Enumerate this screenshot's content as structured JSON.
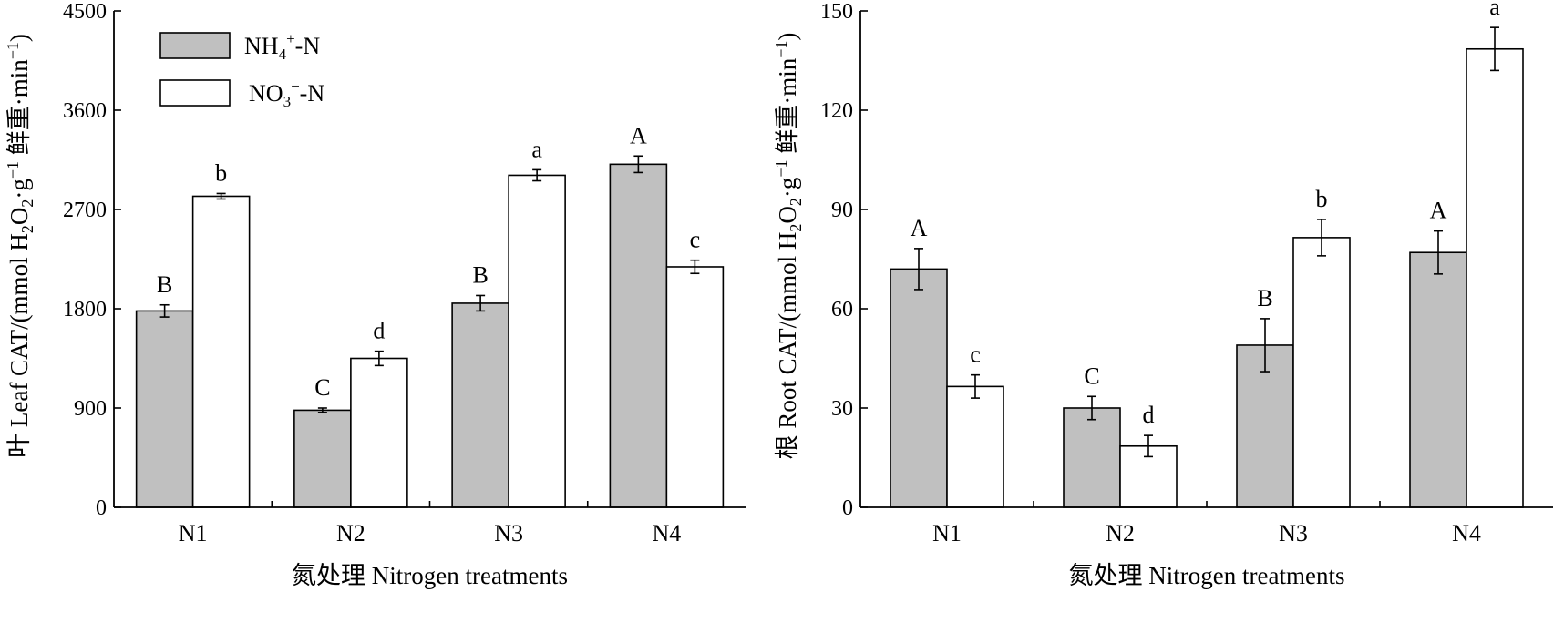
{
  "chart_data": [
    {
      "type": "bar",
      "ylabel_cn": "叶",
      "ylabel_parts": [
        "Leaf CAT/(mmol H",
        "2",
        "O",
        "2",
        "·g",
        "−1",
        " 鲜重·min",
        "−1",
        ")"
      ],
      "xlabel": "氮处理 Nitrogen treatments",
      "categories": [
        "N1",
        "N2",
        "N3",
        "N4"
      ],
      "ylim": [
        0,
        4500
      ],
      "yticks": [
        "0",
        "900",
        "1800",
        "2700",
        "3600",
        "4500"
      ],
      "series": [
        {
          "name": "NH4+-N",
          "name_parts": [
            "NH",
            "4",
            "+",
            "-N"
          ],
          "color": "#c0c0c0",
          "values": [
            1780,
            880,
            1850,
            3110
          ],
          "errors": [
            55,
            20,
            70,
            75
          ],
          "letters": [
            "B",
            "C",
            "B",
            "A"
          ]
        },
        {
          "name": "NO3−-N",
          "name_parts": [
            "NO",
            "3",
            "−",
            "-N"
          ],
          "color": "#ffffff",
          "values": [
            2820,
            1350,
            3010,
            2180
          ],
          "errors": [
            25,
            65,
            50,
            60
          ],
          "letters": [
            "b",
            "d",
            "a",
            "c"
          ]
        }
      ],
      "grid": false,
      "legend": "top-left"
    },
    {
      "type": "bar",
      "ylabel_cn": "根",
      "ylabel_parts": [
        "Root CAT/(mmol H",
        "2",
        "O",
        "2",
        "·g",
        "−1",
        " 鲜重·min",
        "−1",
        ")"
      ],
      "xlabel": "氮处理 Nitrogen treatments",
      "categories": [
        "N1",
        "N2",
        "N3",
        "N4"
      ],
      "ylim": [
        0,
        150
      ],
      "yticks": [
        "0",
        "30",
        "60",
        "90",
        "120",
        "150"
      ],
      "series": [
        {
          "name": "NH4+-N",
          "color": "#c0c0c0",
          "values": [
            72,
            30,
            49,
            77
          ],
          "errors": [
            6.2,
            3.5,
            8,
            6.5
          ],
          "letters": [
            "A",
            "C",
            "B",
            "A"
          ]
        },
        {
          "name": "NO3−-N",
          "color": "#ffffff",
          "values": [
            36.5,
            18.5,
            81.5,
            138.5
          ],
          "errors": [
            3.5,
            3.2,
            5.5,
            6.5
          ],
          "letters": [
            "c",
            "d",
            "b",
            "a"
          ]
        }
      ],
      "grid": false,
      "legend": "none"
    }
  ]
}
